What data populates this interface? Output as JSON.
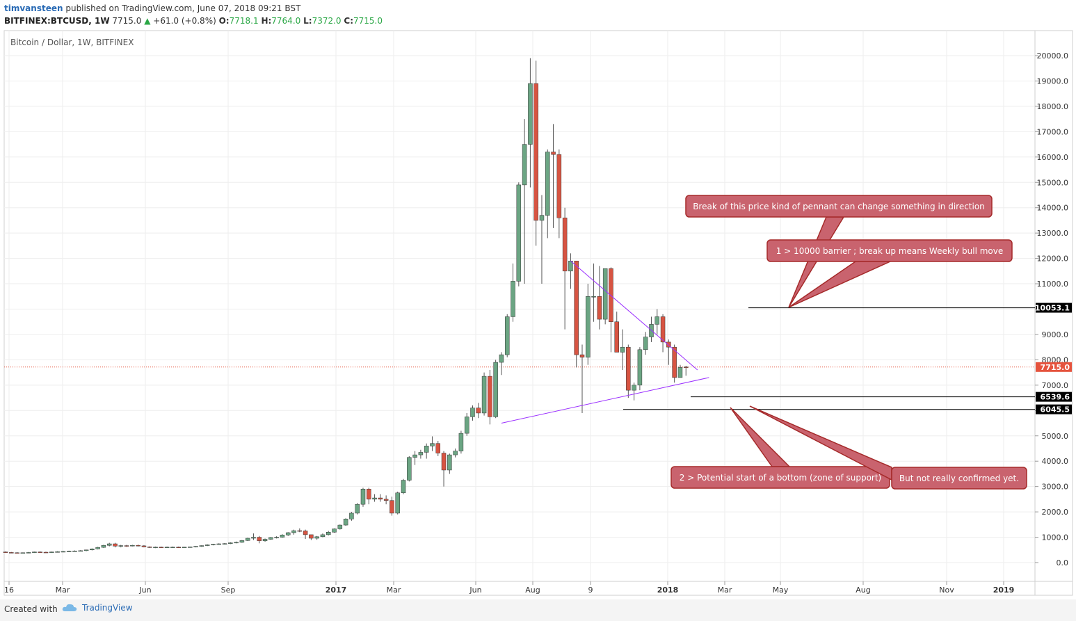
{
  "header": {
    "user": "timvansteen",
    "published": "published on TradingView.com, June 07, 2018 09:21 BST",
    "symbol": "BITFINEX:BTCUSD, 1W",
    "last": "7715.0",
    "change": "+61.0 (+0.8%)",
    "ohlc_open_label": "O:",
    "ohlc_open": "7718.1",
    "ohlc_high_label": "H:",
    "ohlc_high": "7764.0",
    "ohlc_low_label": "L:",
    "ohlc_low": "7372.0",
    "ohlc_close_label": "C:",
    "ohlc_close": "7715.0"
  },
  "chart_title": "Bitcoin / Dollar, 1W, BITFINEX",
  "footer": {
    "created": "Created with",
    "brand": "TradingView"
  },
  "colors": {
    "up": "#6ba583",
    "down": "#d75442",
    "trend": "#9b30ff",
    "callout_fill": "#c9636e",
    "callout_stroke": "#a52a2a",
    "last_price": "#e5533d"
  },
  "chart_data": {
    "type": "candlestick",
    "title": "Bitcoin / Dollar, 1W, BITFINEX",
    "ylim": [
      -750,
      20750
    ],
    "y_ticks": [
      "20000.0",
      "19000.0",
      "18000.0",
      "17000.0",
      "16000.0",
      "15000.0",
      "14000.0",
      "13000.0",
      "12000.0",
      "11000.0",
      "10000.0",
      "9000.0",
      "8000.0",
      "7000.0",
      "6000.0",
      "5000.0",
      "4000.0",
      "3000.0",
      "2000.0",
      "1000.0",
      "0.0"
    ],
    "x_ticks": [
      "16",
      "Mar",
      "Jun",
      "Sep",
      "2017",
      "Mar",
      "Jun",
      "Aug",
      "9",
      "2018",
      "Mar",
      "May",
      "Aug",
      "Nov",
      "2019"
    ],
    "price_labels": [
      {
        "value": 10053.1,
        "label": "10053.1",
        "style": "level"
      },
      {
        "value": 7715.0,
        "label": "7715.0",
        "style": "last"
      },
      {
        "value": 6539.6,
        "label": "6539.6",
        "style": "level"
      },
      {
        "value": 6045.5,
        "label": "6045.5",
        "style": "level"
      }
    ],
    "candles": [
      [
        420,
        440,
        380,
        400
      ],
      [
        400,
        420,
        370,
        390
      ],
      [
        390,
        410,
        360,
        380
      ],
      [
        380,
        400,
        360,
        390
      ],
      [
        390,
        420,
        370,
        400
      ],
      [
        400,
        430,
        380,
        420
      ],
      [
        420,
        440,
        400,
        410
      ],
      [
        410,
        430,
        390,
        400
      ],
      [
        400,
        430,
        380,
        420
      ],
      [
        420,
        450,
        400,
        430
      ],
      [
        430,
        460,
        410,
        440
      ],
      [
        440,
        470,
        420,
        450
      ],
      [
        450,
        480,
        430,
        460
      ],
      [
        460,
        490,
        440,
        470
      ],
      [
        470,
        510,
        450,
        500
      ],
      [
        500,
        560,
        480,
        540
      ],
      [
        540,
        620,
        520,
        600
      ],
      [
        600,
        700,
        580,
        680
      ],
      [
        680,
        780,
        640,
        740
      ],
      [
        740,
        780,
        600,
        650
      ],
      [
        650,
        700,
        600,
        670
      ],
      [
        670,
        700,
        620,
        660
      ],
      [
        660,
        700,
        640,
        680
      ],
      [
        680,
        710,
        640,
        660
      ],
      [
        660,
        690,
        600,
        620
      ],
      [
        620,
        640,
        580,
        600
      ],
      [
        600,
        630,
        570,
        610
      ],
      [
        610,
        630,
        580,
        600
      ],
      [
        600,
        630,
        590,
        610
      ],
      [
        610,
        630,
        600,
        610
      ],
      [
        610,
        630,
        590,
        600
      ],
      [
        600,
        620,
        590,
        610
      ],
      [
        610,
        630,
        590,
        620
      ],
      [
        620,
        650,
        600,
        640
      ],
      [
        640,
        680,
        620,
        670
      ],
      [
        670,
        720,
        650,
        700
      ],
      [
        700,
        740,
        680,
        720
      ],
      [
        720,
        760,
        700,
        740
      ],
      [
        740,
        770,
        710,
        750
      ],
      [
        750,
        800,
        730,
        780
      ],
      [
        780,
        830,
        760,
        800
      ],
      [
        800,
        890,
        780,
        870
      ],
      [
        870,
        980,
        850,
        960
      ],
      [
        960,
        1150,
        890,
        1000
      ],
      [
        1000,
        1050,
        760,
        860
      ],
      [
        860,
        950,
        820,
        920
      ],
      [
        920,
        1010,
        900,
        990
      ],
      [
        990,
        1040,
        950,
        1000
      ],
      [
        1000,
        1120,
        980,
        1090
      ],
      [
        1090,
        1200,
        1050,
        1180
      ],
      [
        1180,
        1300,
        1100,
        1260
      ],
      [
        1260,
        1350,
        1200,
        1250
      ],
      [
        1250,
        1300,
        930,
        1100
      ],
      [
        1100,
        1100,
        890,
        960
      ],
      [
        960,
        1050,
        900,
        1020
      ],
      [
        1020,
        1150,
        1000,
        1100
      ],
      [
        1100,
        1250,
        1070,
        1200
      ],
      [
        1200,
        1350,
        1180,
        1330
      ],
      [
        1330,
        1500,
        1300,
        1480
      ],
      [
        1480,
        1750,
        1450,
        1720
      ],
      [
        1720,
        2000,
        1650,
        1950
      ],
      [
        1950,
        2350,
        1900,
        2300
      ],
      [
        2300,
        2950,
        2200,
        2900
      ],
      [
        2900,
        2950,
        2300,
        2500
      ],
      [
        2500,
        2700,
        2400,
        2550
      ],
      [
        2550,
        2700,
        2400,
        2500
      ],
      [
        2500,
        2650,
        2300,
        2450
      ],
      [
        2450,
        2600,
        1850,
        1950
      ],
      [
        1950,
        2800,
        1900,
        2750
      ],
      [
        2750,
        3300,
        2700,
        3250
      ],
      [
        3250,
        4200,
        3200,
        4150
      ],
      [
        4150,
        4400,
        3850,
        4250
      ],
      [
        4250,
        4450,
        4100,
        4350
      ],
      [
        4350,
        4700,
        4100,
        4600
      ],
      [
        4600,
        4980,
        4400,
        4700
      ],
      [
        4700,
        4800,
        4200,
        4320
      ],
      [
        4320,
        4400,
        3000,
        3650
      ],
      [
        3650,
        4300,
        3500,
        4250
      ],
      [
        4250,
        4500,
        4150,
        4400
      ],
      [
        4400,
        5200,
        4300,
        5100
      ],
      [
        5100,
        5900,
        5000,
        5750
      ],
      [
        5750,
        6200,
        5600,
        6100
      ],
      [
        6100,
        6300,
        5700,
        5900
      ],
      [
        5900,
        7500,
        5800,
        7350
      ],
      [
        7350,
        7600,
        5450,
        5750
      ],
      [
        5750,
        8000,
        5700,
        7900
      ],
      [
        7900,
        8300,
        7400,
        8200
      ],
      [
        8200,
        9800,
        8100,
        9700
      ],
      [
        9700,
        11800,
        9500,
        11100
      ],
      [
        11100,
        15000,
        10900,
        14900
      ],
      [
        14900,
        17500,
        11000,
        16500
      ],
      [
        16500,
        19900,
        14800,
        18900
      ],
      [
        18900,
        19800,
        12500,
        13500
      ],
      [
        13500,
        14500,
        11000,
        13700
      ],
      [
        13700,
        16300,
        12800,
        16200
      ],
      [
        16200,
        17300,
        13200,
        16100
      ],
      [
        16100,
        16300,
        12800,
        13600
      ],
      [
        13600,
        14000,
        9200,
        11500
      ],
      [
        11500,
        12200,
        10800,
        11900
      ],
      [
        11900,
        11900,
        7700,
        8200
      ],
      [
        8200,
        8600,
        5900,
        8100
      ],
      [
        8100,
        11000,
        7800,
        10500
      ],
      [
        10500,
        11800,
        9500,
        10500
      ],
      [
        10500,
        11700,
        9200,
        9600
      ],
      [
        9600,
        11500,
        9400,
        11600
      ],
      [
        11600,
        11650,
        8300,
        9500
      ],
      [
        9500,
        9900,
        8300,
        8300
      ],
      [
        8300,
        9200,
        7600,
        8500
      ],
      [
        8500,
        8600,
        6500,
        6800
      ],
      [
        6800,
        7100,
        6400,
        7000
      ],
      [
        7000,
        8500,
        6800,
        8400
      ],
      [
        8400,
        9100,
        8200,
        8900
      ],
      [
        8900,
        9700,
        8700,
        9400
      ],
      [
        9400,
        10000,
        9000,
        9700
      ],
      [
        9700,
        9800,
        8300,
        8700
      ],
      [
        8700,
        8800,
        7800,
        8500
      ],
      [
        8500,
        8600,
        7100,
        7300
      ],
      [
        7300,
        7800,
        7300,
        7700
      ],
      [
        7718.1,
        7764,
        7372,
        7715
      ]
    ],
    "annotations": [
      "Break of this price kind of pennant can change something in direction",
      "1 > 10000 barrier ; break up means Weekly bull move",
      "2 > Potential start of a bottom (zone of support)",
      "But not really confirmed yet."
    ],
    "horizontal_levels": [
      10053.1,
      6539.6,
      6045.5
    ],
    "trendlines": [
      {
        "from": {
          "week": 98,
          "value": 11900
        },
        "to": {
          "week": 120,
          "value": 7600
        }
      },
      {
        "from": {
          "week": 86,
          "value": 5500
        },
        "to": {
          "week": 122,
          "value": 7300
        }
      }
    ],
    "price_axis_labels": {
      "level_10053": "10053.1",
      "level_6539": "6539.6",
      "level_6045": "6045.5",
      "last": "7715.0"
    }
  }
}
